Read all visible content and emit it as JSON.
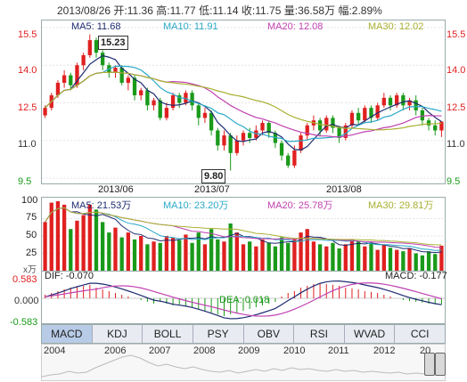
{
  "header": {
    "date": "2013/08/26",
    "open_label": "开:",
    "open": "11.36",
    "high_label": "高:",
    "high": "11.77",
    "low_label": "低:",
    "low": "11.14",
    "close_label": "收:",
    "close": "11.75",
    "volume_label": "量:",
    "volume": "36.58万",
    "change_label": "幅:",
    "change": "2.89%"
  },
  "colors": {
    "up": "#e02020",
    "down": "#1a9a1a",
    "ma5": "#1d2b70",
    "ma10": "#2aa8c8",
    "ma20": "#c040b0",
    "ma30": "#a8b030"
  },
  "price_panel": {
    "ma5": "MA5: 11.68",
    "ma10": "MA10: 11.91",
    "ma20": "MA20: 12.08",
    "ma30": "MA30: 12.02",
    "axis_labels": [
      "15.5",
      "14.0",
      "12.5",
      "11.0",
      "9.5"
    ],
    "axis_values": [
      15.5,
      14.0,
      12.5,
      11.0,
      9.5
    ],
    "months": [
      "2013/06",
      "2013/07",
      "2013/08"
    ],
    "high_callout": "15.23",
    "low_callout": "9.80"
  },
  "volume_panel": {
    "ma5": "MA5: 21.53万",
    "ma10": "MA10: 23.20万",
    "ma20": "MA20: 25.78万",
    "ma30": "MA30: 29.81万",
    "axis_labels": [
      "100",
      "75",
      "50",
      "25"
    ],
    "unit": "x万"
  },
  "macd_panel": {
    "dif": "DIF: -0.070",
    "dea": "DEA: 0.018",
    "macd": "MACD: -0.177",
    "axis_labels": [
      "0.583",
      "0.000",
      "-0.583"
    ]
  },
  "tabs": [
    "MACD",
    "KDJ",
    "BOLL",
    "PSY",
    "OBV",
    "RSI",
    "WVAD",
    "CCI"
  ],
  "active_tab": "MACD",
  "timeline": {
    "years": [
      "2004",
      "2006",
      "2007",
      "2008",
      "2009",
      "2010",
      "2011",
      "2012",
      "20"
    ]
  },
  "chart_data": {
    "type": "candlestick",
    "candles": [
      [
        12.0,
        12.3,
        12.4,
        11.9
      ],
      [
        12.3,
        12.8,
        12.9,
        12.2
      ],
      [
        12.8,
        13.3,
        13.4,
        12.7
      ],
      [
        13.3,
        13.6,
        13.8,
        13.1
      ],
      [
        13.6,
        13.2,
        13.7,
        13.0
      ],
      [
        13.2,
        14.0,
        14.1,
        13.1
      ],
      [
        14.0,
        14.4,
        14.5,
        13.8
      ],
      [
        14.4,
        15.0,
        15.23,
        14.3
      ],
      [
        15.0,
        14.5,
        15.1,
        14.3
      ],
      [
        14.5,
        14.0,
        14.6,
        13.8
      ],
      [
        14.0,
        13.7,
        14.1,
        13.5
      ],
      [
        13.7,
        13.9,
        14.0,
        13.5
      ],
      [
        13.9,
        13.3,
        14.0,
        13.2
      ],
      [
        13.3,
        13.5,
        13.6,
        13.0
      ],
      [
        13.5,
        12.8,
        13.6,
        12.6
      ],
      [
        12.8,
        13.0,
        13.1,
        12.6
      ],
      [
        13.0,
        12.4,
        13.1,
        12.2
      ],
      [
        12.4,
        12.6,
        12.7,
        12.2
      ],
      [
        12.6,
        11.9,
        12.7,
        11.8
      ],
      [
        11.9,
        12.3,
        12.5,
        11.8
      ],
      [
        12.3,
        12.8,
        12.9,
        12.2
      ],
      [
        12.8,
        12.5,
        12.9,
        12.3
      ],
      [
        12.5,
        12.9,
        13.0,
        12.4
      ],
      [
        12.9,
        12.4,
        13.0,
        12.2
      ],
      [
        12.4,
        11.9,
        12.5,
        11.6
      ],
      [
        11.9,
        12.1,
        12.3,
        11.7
      ],
      [
        12.1,
        11.4,
        12.2,
        11.2
      ],
      [
        11.4,
        10.8,
        11.5,
        10.6
      ],
      [
        10.8,
        11.2,
        11.4,
        10.6
      ],
      [
        11.2,
        10.5,
        11.3,
        9.8
      ],
      [
        10.5,
        11.0,
        11.2,
        10.4
      ],
      [
        11.0,
        11.3,
        11.4,
        10.8
      ],
      [
        11.3,
        11.1,
        11.5,
        10.9
      ],
      [
        11.1,
        11.4,
        11.6,
        11.0
      ],
      [
        11.4,
        11.7,
        11.8,
        11.2
      ],
      [
        11.7,
        11.3,
        11.8,
        11.1
      ],
      [
        11.3,
        10.9,
        11.4,
        10.7
      ],
      [
        10.9,
        10.4,
        11.0,
        10.2
      ],
      [
        10.4,
        10.0,
        10.5,
        9.9
      ],
      [
        10.0,
        10.6,
        10.8,
        9.9
      ],
      [
        10.6,
        11.2,
        11.3,
        10.5
      ],
      [
        11.2,
        11.6,
        11.7,
        11.0
      ],
      [
        11.6,
        11.8,
        12.0,
        11.4
      ],
      [
        11.8,
        11.4,
        11.9,
        11.2
      ],
      [
        11.4,
        11.9,
        12.0,
        11.3
      ],
      [
        11.9,
        11.5,
        12.0,
        11.3
      ],
      [
        11.5,
        11.1,
        11.6,
        10.9
      ],
      [
        11.1,
        11.6,
        11.7,
        11.0
      ],
      [
        11.6,
        12.1,
        12.2,
        11.5
      ],
      [
        12.1,
        11.8,
        12.3,
        11.6
      ],
      [
        11.8,
        12.3,
        12.4,
        11.7
      ],
      [
        12.3,
        11.9,
        12.4,
        11.7
      ],
      [
        11.9,
        12.4,
        12.5,
        11.8
      ],
      [
        12.4,
        12.7,
        12.9,
        12.3
      ],
      [
        12.7,
        12.4,
        12.8,
        12.2
      ],
      [
        12.4,
        12.8,
        12.9,
        12.3
      ],
      [
        12.8,
        12.4,
        12.9,
        12.2
      ],
      [
        12.4,
        12.6,
        12.7,
        12.2
      ],
      [
        12.6,
        12.2,
        12.8,
        12.0
      ],
      [
        12.2,
        11.8,
        12.3,
        11.6
      ],
      [
        11.8,
        11.6,
        11.9,
        11.4
      ],
      [
        11.6,
        11.4,
        11.8,
        11.2
      ],
      [
        11.4,
        11.75,
        11.77,
        11.14
      ]
    ],
    "volume": [
      70,
      98,
      100,
      95,
      60,
      72,
      80,
      95,
      88,
      70,
      55,
      62,
      48,
      55,
      45,
      50,
      38,
      42,
      40,
      50,
      48,
      44,
      52,
      40,
      55,
      38,
      60,
      45,
      42,
      68,
      55,
      38,
      42,
      35,
      45,
      40,
      35,
      48,
      40,
      45,
      55,
      60,
      42,
      38,
      35,
      40,
      32,
      38,
      45,
      42,
      35,
      40,
      30,
      38,
      33,
      30,
      28,
      32,
      25,
      22,
      28,
      24,
      36
    ],
    "macd_bars": [
      0.1,
      0.15,
      0.2,
      0.25,
      0.3,
      0.32,
      0.35,
      0.38,
      0.3,
      0.25,
      0.2,
      0.15,
      0.1,
      0.05,
      0.0,
      -0.05,
      -0.1,
      -0.15,
      -0.1,
      -0.15,
      -0.2,
      -0.18,
      -0.2,
      -0.25,
      -0.3,
      -0.35,
      -0.4,
      -0.45,
      -0.5,
      -0.45,
      -0.4,
      -0.35,
      -0.3,
      -0.25,
      -0.2,
      -0.15,
      -0.1,
      0.05,
      0.15,
      0.2,
      0.3,
      0.35,
      0.4,
      0.42,
      0.4,
      0.38,
      0.35,
      0.3,
      0.28,
      0.25,
      0.2,
      0.18,
      0.15,
      0.1,
      0.05,
      0.0,
      -0.05,
      -0.08,
      -0.1,
      -0.12,
      -0.15,
      -0.17,
      -0.177
    ]
  }
}
